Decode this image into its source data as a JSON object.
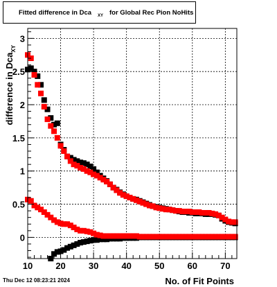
{
  "title": {
    "main": "Fitted difference in Dca",
    "subscript": "XY",
    "tail": "for Global Rec Pion NoHits"
  },
  "footer": {
    "date": "Thu Dec 12 08:23:21 2024"
  },
  "colors": {
    "black_series": "#000000",
    "red_series": "#ff0000",
    "frame": "#000000",
    "grid": "#000000"
  },
  "chart_data": {
    "type": "scatter",
    "title": "Fitted difference in Dca XY for Global Rec Pion NoHits",
    "xlabel": "No. of Fit Points",
    "ylabel": "difference in Dca",
    "ylabel_subscript": "XY",
    "xlim": [
      10,
      73.5
    ],
    "ylim": [
      -0.32,
      3.15
    ],
    "xticks": [
      10,
      20,
      30,
      40,
      50,
      60,
      70
    ],
    "yticks": [
      0,
      0.5,
      1,
      1.5,
      2,
      2.5,
      3
    ],
    "ytick_labels": [
      "0",
      "0.5",
      "1",
      "1.5",
      "2",
      "2.5",
      "3"
    ],
    "grid": true,
    "legend": "none",
    "series": [
      {
        "color": "#000000",
        "x": [
          10,
          11,
          12,
          13,
          14,
          15,
          16,
          17,
          18,
          19,
          20,
          21,
          22,
          23,
          24,
          25,
          26,
          27,
          28,
          29,
          30,
          31,
          32,
          33,
          34,
          35,
          36,
          37,
          38,
          39,
          40,
          41,
          42,
          43,
          44,
          45,
          46,
          47,
          48,
          49,
          50,
          51,
          52,
          53,
          54,
          55,
          56,
          57,
          58,
          59,
          60,
          61,
          62,
          63,
          64,
          65,
          66,
          67,
          68,
          69,
          70,
          71,
          72,
          73
        ],
        "y": [
          2.53,
          2.55,
          2.5,
          2.43,
          2.3,
          2.07,
          1.93,
          1.8,
          1.7,
          1.72,
          1.4,
          1.32,
          1.22,
          1.2,
          1.17,
          1.15,
          1.13,
          1.12,
          1.1,
          1.07,
          1.03,
          0.98,
          0.93,
          0.89,
          0.85,
          0.8,
          0.75,
          0.72,
          0.68,
          0.65,
          0.62,
          0.6,
          0.58,
          0.57,
          0.55,
          0.53,
          0.51,
          0.49,
          0.47,
          0.46,
          0.45,
          0.44,
          0.43,
          0.42,
          0.41,
          0.4,
          0.39,
          0.38,
          0.38,
          0.37,
          0.37,
          0.36,
          0.36,
          0.36,
          0.35,
          0.35,
          0.35,
          0.34,
          0.33,
          0.28,
          0.25,
          0.23,
          0.22,
          0.21
        ]
      },
      {
        "color": "#000000",
        "x": [
          17,
          18,
          19,
          20,
          21,
          22,
          23,
          24,
          25,
          26,
          27,
          28,
          29,
          30,
          31,
          32,
          33,
          34,
          35,
          36,
          37,
          38,
          39,
          40,
          41,
          42,
          43,
          44,
          45,
          46,
          47,
          48,
          49,
          50,
          51,
          52,
          53,
          54,
          55,
          56,
          57,
          58,
          59,
          60,
          61,
          62,
          63,
          64,
          65,
          66,
          67,
          68,
          69,
          70,
          71,
          72,
          73
        ],
        "y": [
          -0.32,
          -0.25,
          -0.22,
          -0.21,
          -0.19,
          -0.16,
          -0.14,
          -0.12,
          -0.1,
          -0.08,
          -0.07,
          -0.06,
          -0.05,
          -0.04,
          -0.04,
          -0.03,
          -0.03,
          -0.03,
          -0.02,
          -0.02,
          -0.02,
          -0.02,
          -0.01,
          -0.01,
          -0.01,
          -0.01,
          -0.01,
          0.0,
          0.0,
          0.0,
          0.0,
          0.0,
          0.0,
          0.0,
          0.0,
          0.0,
          0.0,
          0.0,
          0.0,
          0.0,
          0.0,
          0.0,
          0.0,
          0.0,
          0.0,
          0.0,
          0.0,
          0.0,
          0.0,
          0.0,
          0.0,
          0.0,
          0.0,
          0.0,
          0.0,
          0.0,
          0.0
        ]
      },
      {
        "color": "#ff0000",
        "x": [
          10,
          11,
          12,
          13,
          14,
          15,
          16,
          17,
          18,
          19,
          20,
          21,
          22,
          23,
          24,
          25,
          26,
          27,
          28,
          29,
          30,
          31,
          32,
          33,
          34,
          35,
          36,
          37,
          38,
          39,
          40,
          41,
          42,
          43,
          44,
          45,
          46,
          47,
          48,
          49,
          50,
          51,
          52,
          53,
          54,
          55,
          56,
          57,
          58,
          59,
          60,
          61,
          62,
          63,
          64,
          65,
          66,
          67,
          68,
          69,
          70,
          71,
          72,
          73
        ],
        "y": [
          2.75,
          2.7,
          2.45,
          2.3,
          2.17,
          1.97,
          1.78,
          1.68,
          1.6,
          1.5,
          1.38,
          1.3,
          1.22,
          1.15,
          1.1,
          1.08,
          1.05,
          1.03,
          1.0,
          0.98,
          0.95,
          0.93,
          0.9,
          0.87,
          0.84,
          0.8,
          0.75,
          0.71,
          0.67,
          0.64,
          0.62,
          0.6,
          0.58,
          0.56,
          0.54,
          0.52,
          0.5,
          0.48,
          0.47,
          0.45,
          0.44,
          0.43,
          0.42,
          0.42,
          0.41,
          0.4,
          0.4,
          0.39,
          0.39,
          0.39,
          0.38,
          0.38,
          0.38,
          0.37,
          0.37,
          0.37,
          0.36,
          0.35,
          0.33,
          0.3,
          0.27,
          0.24,
          0.23,
          0.23
        ]
      },
      {
        "color": "#ff0000",
        "x": [
          10,
          11,
          12,
          13,
          14,
          15,
          16,
          17,
          18,
          19,
          20,
          21,
          22,
          23,
          24,
          25,
          26,
          27,
          28,
          29,
          30,
          31,
          32,
          33,
          34,
          35,
          36,
          37,
          38,
          39,
          40,
          41,
          42,
          43,
          44,
          45,
          46,
          47,
          48,
          49,
          50,
          51,
          52,
          53,
          54,
          55,
          56,
          57,
          58,
          59,
          60,
          61,
          62,
          63,
          64,
          65,
          66,
          67,
          68,
          69,
          70,
          71,
          72,
          73
        ],
        "y": [
          0.57,
          0.55,
          0.48,
          0.45,
          0.42,
          0.38,
          0.34,
          0.3,
          0.26,
          0.23,
          0.21,
          0.2,
          0.2,
          0.18,
          0.15,
          0.12,
          0.1,
          0.1,
          0.09,
          0.08,
          0.06,
          0.04,
          0.03,
          0.02,
          0.02,
          0.02,
          0.02,
          0.02,
          0.02,
          0.02,
          0.02,
          0.02,
          0.02,
          0.02,
          0.01,
          0.01,
          0.01,
          0.01,
          0.01,
          0.01,
          0.01,
          0.01,
          0.01,
          0.01,
          0.01,
          0.01,
          0.01,
          0.01,
          0.01,
          0.01,
          0.01,
          0.01,
          0.01,
          0.01,
          0.01,
          0.01,
          0.01,
          0.01,
          0.01,
          0.01,
          0.01,
          0.01,
          0.01,
          0.01
        ]
      }
    ]
  }
}
